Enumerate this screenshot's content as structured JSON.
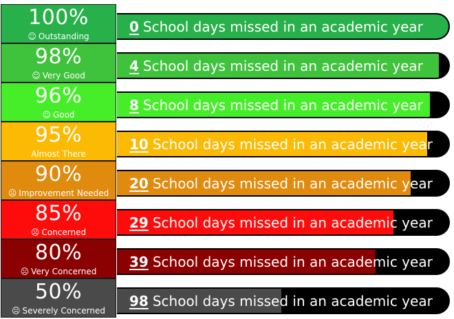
{
  "caption": "School days missed in an academic year",
  "face_happy": "☺",
  "face_sad": "☹",
  "rows": [
    {
      "percent": "100%",
      "label": "Outstanding",
      "face": "happy",
      "days": "0",
      "fill": 1.0,
      "color": "#28b04a"
    },
    {
      "percent": "98%",
      "label": "Very Good",
      "face": "happy",
      "days": "4",
      "fill": 0.97,
      "color": "#3fc23c"
    },
    {
      "percent": "96%",
      "label": "Good",
      "face": "happy",
      "days": "8",
      "fill": 0.945,
      "color": "#46ee2a"
    },
    {
      "percent": "95%",
      "label": "Almost There",
      "face": "none",
      "days": "10",
      "fill": 0.935,
      "color": "#fcba04"
    },
    {
      "percent": "90%",
      "label": "Improvement Needed",
      "face": "sad",
      "days": "20",
      "fill": 0.885,
      "color": "#e08a0e"
    },
    {
      "percent": "85%",
      "label": "Concerned",
      "face": "sad",
      "days": "29",
      "fill": 0.835,
      "color": "#fe0c0c"
    },
    {
      "percent": "80%",
      "label": "Very Concerned",
      "face": "sad",
      "days": "39",
      "fill": 0.78,
      "color": "#8b0000"
    },
    {
      "percent": "50%",
      "label": "Severely Concerned",
      "face": "sad",
      "days": "98",
      "fill": 0.495,
      "color": "#4a4a4a"
    }
  ]
}
